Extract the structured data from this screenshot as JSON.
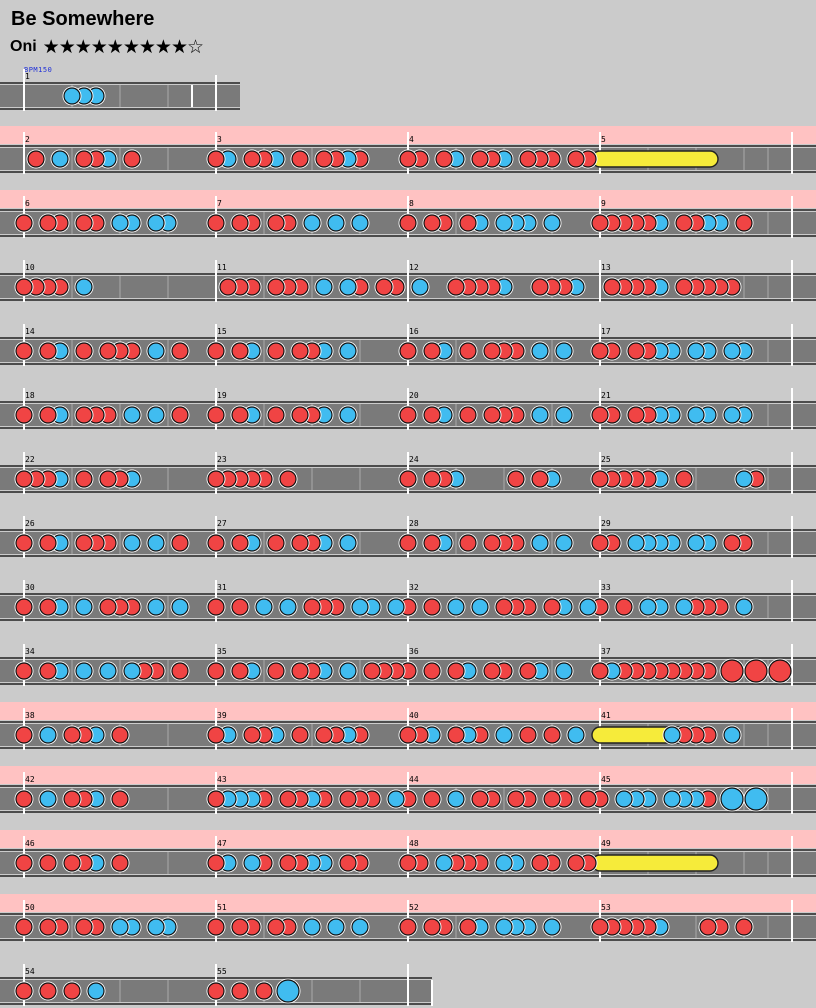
{
  "song": {
    "title": "Be Somewhere",
    "difficulty": "Oni",
    "stars_label": "★★★★★★★★★☆",
    "level": 9,
    "level_max": 10
  },
  "bpm_label": "BPM150",
  "note_legend": {
    "d": "don (small, red)",
    "k": "ka (small, blue)",
    "D": "big don (red)",
    "K": "big ka (blue)",
    "roll": "drumroll (yellow)"
  },
  "colors": {
    "background": "#cbcbcb",
    "lane": "#7a7a7a",
    "gogo_band": "#ffc2c2",
    "don": "#f04444",
    "ka": "#40bcf0",
    "drumroll": "#f6eb3a",
    "bpm_text": "#1f2fd8"
  },
  "chart_data": {
    "type": "table",
    "measure_numbers": [
      "1",
      "2",
      "3",
      "4",
      "5",
      "6",
      "7",
      "8",
      "9",
      "10",
      "11",
      "12",
      "13",
      "14",
      "15",
      "16",
      "17",
      "18",
      "19",
      "20",
      "21",
      "22",
      "23",
      "24",
      "25",
      "26",
      "27",
      "28",
      "29",
      "30",
      "31",
      "32",
      "33",
      "34",
      "35",
      "36",
      "37",
      "38",
      "39",
      "40",
      "41",
      "42",
      "43",
      "44",
      "45",
      "46",
      "47",
      "48",
      "49",
      "50",
      "51",
      "52",
      "53",
      "54",
      "55"
    ],
    "rows": [
      {
        "measures": [
          "1"
        ],
        "gogo": false
      },
      {
        "measures": [
          "2",
          "3",
          "4",
          "5"
        ],
        "gogo": true
      },
      {
        "measures": [
          "6",
          "7",
          "8",
          "9"
        ],
        "gogo": true
      },
      {
        "measures": [
          "10",
          "11",
          "12",
          "13"
        ],
        "gogo": false
      },
      {
        "measures": [
          "14",
          "15",
          "16",
          "17"
        ],
        "gogo": false
      },
      {
        "measures": [
          "18",
          "19",
          "20",
          "21"
        ],
        "gogo": false
      },
      {
        "measures": [
          "22",
          "23",
          "24",
          "25"
        ],
        "gogo": false
      },
      {
        "measures": [
          "26",
          "27",
          "28",
          "29"
        ],
        "gogo": false
      },
      {
        "measures": [
          "30",
          "31",
          "32",
          "33"
        ],
        "gogo": false
      },
      {
        "measures": [
          "34",
          "35",
          "36",
          "37"
        ],
        "gogo": false
      },
      {
        "measures": [
          "38",
          "39",
          "40",
          "41"
        ],
        "gogo": true
      },
      {
        "measures": [
          "42",
          "43",
          "44",
          "45"
        ],
        "gogo": true
      },
      {
        "measures": [
          "46",
          "47",
          "48",
          "49"
        ],
        "gogo": true
      },
      {
        "measures": [
          "50",
          "51",
          "52",
          "53"
        ],
        "gogo": true
      },
      {
        "measures": [
          "54",
          "55"
        ],
        "gogo": false
      }
    ],
    "measures": {
      "1": "0000kkk0",
      "2": "0d0k0ddk0d0000000",
      "3": "dk0ddk0d0ddkd000",
      "4": "dd0dk0ddk0ddd0dd",
      "5": "roll:8",
      "6": "d0dd0dd0kk0kk000",
      "7": "d0dd0dd0k0k0k000",
      "8": "d0dd0dk0kkk0k000",
      "9": "dddddk0ddkk0d000",
      "10": "dddd0k00",
      "11": "0ddd0ddd0k0kd0dd",
      "12": "0k00ddddk00dddk0",
      "13": "0ddddk0ddddd0000",
      "14": "d0dk0d0ddd0k0d00",
      "15": "d0dk0d0ddk0k0000",
      "16": "d0dk0d0ddd0k0k00",
      "17": "dd0ddkk0kk0kk000",
      "18": "d0dk0ddd0k0k0d00",
      "19": "d0dk0d0ddk0k0000",
      "20": "d0dk0d0ddd0k0k00",
      "21": "dd0ddkk0kk0kk000",
      "22": "dddk0d0ddk000000",
      "23": "ddddd0d000000000",
      "24": "d0ddk0000d0dk000",
      "25": "dddddk0d0000kd00",
      "26": "d0dk0ddd0k0k0d00",
      "27": "d0dk0d0ddk0k0000",
      "28": "d0dk0d0ddd0k0k00",
      "29": "dd0kkkk0kk0dd000",
      "30": "d0dk0k0ddd0k0k00",
      "31": "d0d0k0k0ddd0kk0k",
      "32": "d0d0k0k0ddd0dk0k",
      "33": "d0d0kk0kddd0k000",
      "34": "d0dk0k0k0kdd0d00",
      "35": "d0dk0d0ddk0k0ddd",
      "36": "d0d0dk0dd0dk0k00",
      "37": "dkdddddddd0D0D0D",
      "38": "d0k0ddk0d0000000",
      "39": "dk0ddk0d0ddkd000",
      "40": "ddk0dkd0k0d0d0k0",
      "41": "roll:6;kddd0k",
      "42": "d0k0ddk0d0000000",
      "43": "dkkkd0ddkd0ddd0k",
      "44": "d0d0k0dd0dd0dd0d",
      "45": "d0kkk0kkkd0K0K00",
      "46": "d0d0ddk0d0000000",
      "47": "dk0kd0ddkk0dd000",
      "48": "dd0kddd0kk0dd0dd",
      "49": "roll:8",
      "50": "d0dd0dd0kk0kk000",
      "51": "d0dd0dd0k0k0k000",
      "52": "d0dd0dk0kkk0k000",
      "53": "dddddk000dd0d000",
      "54": "d0d0d0k000000000",
      "55": "d0d0d0K000000000"
    }
  }
}
